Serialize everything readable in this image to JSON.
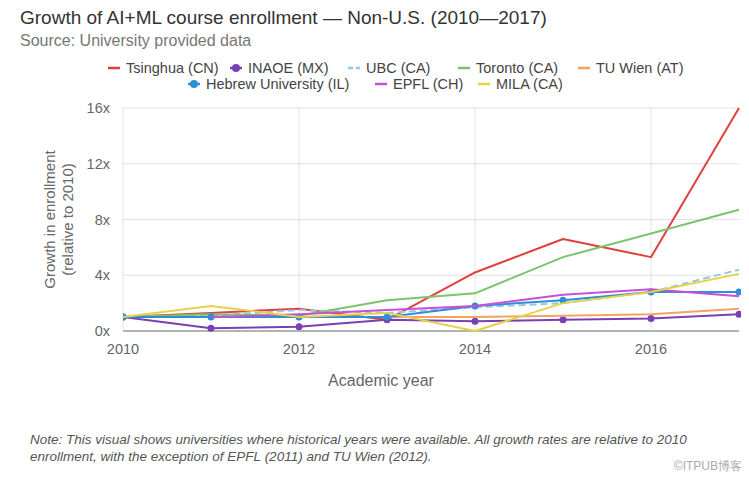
{
  "chart_data": {
    "type": "line",
    "title": "Growth of AI+ML course enrollment — Non-U.S. (2010—2017)",
    "subtitle": "Source: University provided data",
    "x_label": "Academic year",
    "y_label": "Growth in enrollment (relative to 2010)",
    "note": "Note: This visual shows universities where historical years were available. All growth rates are relative to 2010 enrollment, with the exception of EPFL (2011) and TU Wien (2012).",
    "watermark": "©ITPUB博客",
    "x": [
      2010,
      2011,
      2012,
      2013,
      2014,
      2015,
      2016,
      2017
    ],
    "xlim": [
      2010,
      2017
    ],
    "xticks": [
      2010,
      2012,
      2014,
      2016
    ],
    "ylim": [
      0,
      16
    ],
    "yticks": [
      {
        "value": 0,
        "label": "0x"
      },
      {
        "value": 4,
        "label": "4x"
      },
      {
        "value": 8,
        "label": "8x"
      },
      {
        "value": 12,
        "label": "12x"
      },
      {
        "value": 16,
        "label": "16x"
      }
    ],
    "grid": true,
    "legend": "top",
    "series": [
      {
        "name": "Tsinghua (CN)",
        "color": "#e0403c",
        "values": [
          1,
          1.3,
          1.6,
          0.8,
          4.2,
          6.6,
          5.3,
          16
        ]
      },
      {
        "name": "INAOE (MX)",
        "color": "#7b3fb5",
        "marker": "circle",
        "values": [
          1,
          0.2,
          0.3,
          0.8,
          0.7,
          0.8,
          0.9,
          1.2
        ]
      },
      {
        "name": "UBC (CA)",
        "color": "#93c8e0",
        "line_style": "dashed",
        "values": [
          1,
          1.1,
          1.5,
          1.3,
          1.7,
          2.0,
          2.8,
          4.4
        ]
      },
      {
        "name": "Toronto (CA)",
        "color": "#79c46c",
        "values": [
          1,
          1.2,
          1.1,
          2.2,
          2.7,
          5.3,
          7.0,
          8.7
        ]
      },
      {
        "name": "TU Wien (AT)",
        "color": "#f5a45e",
        "values": [
          null,
          null,
          1,
          1,
          1.0,
          1.1,
          1.2,
          1.6
        ]
      },
      {
        "name": "Hebrew University (IL)",
        "color": "#2f8fd6",
        "marker": "circle",
        "values": [
          1,
          1.0,
          1.0,
          1.0,
          1.8,
          2.2,
          2.8,
          2.8
        ]
      },
      {
        "name": "EPFL (CH)",
        "color": "#c94fd8",
        "values": [
          null,
          1,
          1.2,
          1.5,
          1.8,
          2.6,
          3.0,
          2.5
        ]
      },
      {
        "name": "MILA (CA)",
        "color": "#e4d24a",
        "values": [
          1,
          1.8,
          1.0,
          1.3,
          0.0,
          2.0,
          2.8,
          4.1
        ]
      }
    ]
  }
}
